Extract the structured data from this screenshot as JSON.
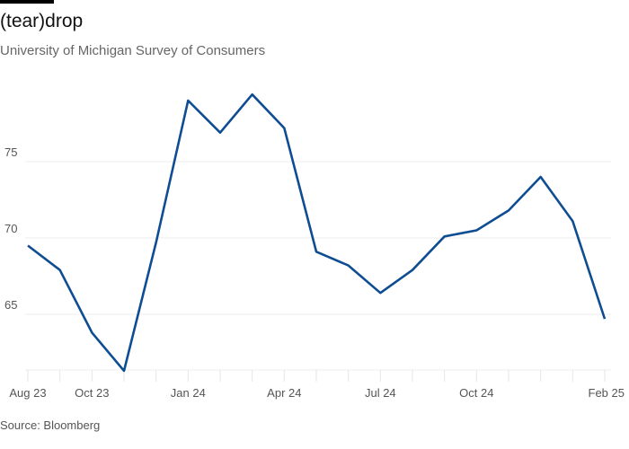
{
  "title": "(tear)drop",
  "subtitle": "University of Michigan Survey of Consumers",
  "source": "Source: Bloomberg",
  "colors": {
    "line": "#0f4d92",
    "grid": "#eeeeee",
    "text": "#555555"
  },
  "chart_data": {
    "type": "line",
    "title": "(tear)drop",
    "subtitle": "University of Michigan Survey of Consumers",
    "xlabel": "",
    "ylabel": "",
    "x": [
      "Aug 23",
      "Sep 23",
      "Oct 23",
      "Nov 23",
      "Dec 23",
      "Jan 24",
      "Feb 24",
      "Mar 24",
      "Apr 24",
      "May 24",
      "Jun 24",
      "Jul 24",
      "Aug 24",
      "Sep 24",
      "Oct 24",
      "Nov 24",
      "Dec 24",
      "Jan 25",
      "Feb 25"
    ],
    "x_tick_labels": [
      "Aug 23",
      "Oct 23",
      "Jan 24",
      "Apr 24",
      "Jul 24",
      "Oct 24",
      "Feb 25"
    ],
    "x_tick_indices": [
      0,
      2,
      5,
      8,
      11,
      14,
      18
    ],
    "series": [
      {
        "values": [
          69.5,
          67.9,
          63.8,
          61.3,
          69.7,
          79.0,
          76.9,
          79.4,
          77.2,
          69.1,
          68.2,
          66.4,
          67.9,
          70.1,
          70.5,
          71.8,
          74.0,
          71.1,
          64.7
        ]
      }
    ],
    "y_ticks": [
      65,
      70,
      75
    ],
    "ylim": [
      61.3,
      82
    ],
    "grid": true,
    "legend": "none"
  }
}
